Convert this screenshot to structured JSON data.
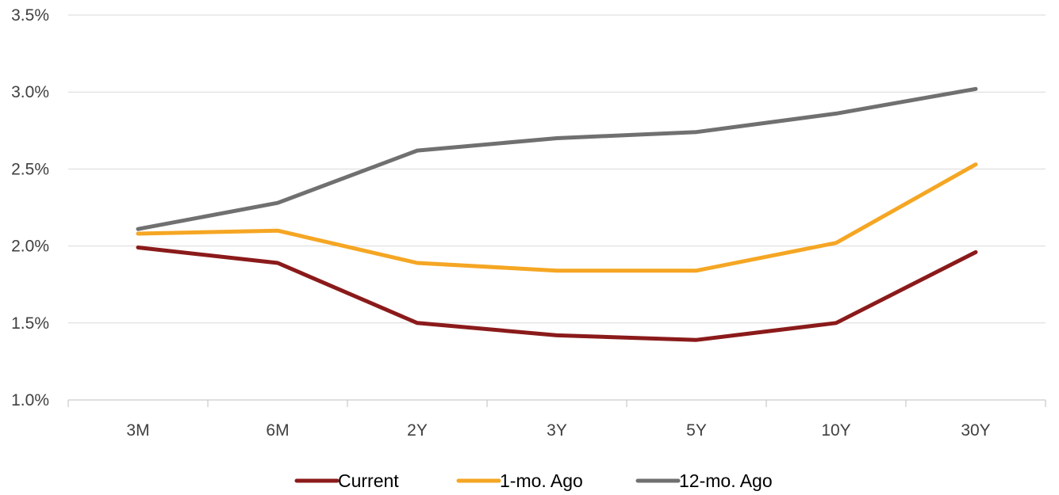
{
  "chart_data": {
    "type": "line",
    "title": "",
    "xlabel": "",
    "ylabel": "",
    "categories": [
      "3M",
      "6M",
      "2Y",
      "3Y",
      "5Y",
      "10Y",
      "30Y"
    ],
    "ylim": [
      1.0,
      3.5
    ],
    "yticks": [
      "1.0%",
      "1.5%",
      "2.0%",
      "2.5%",
      "3.0%",
      "3.5%"
    ],
    "grid": true,
    "legend_position": "bottom",
    "series": [
      {
        "name": "Current",
        "color": "#8b1a1a",
        "values": [
          1.99,
          1.89,
          1.5,
          1.42,
          1.39,
          1.5,
          1.96
        ]
      },
      {
        "name": "1-mo. Ago",
        "color": "#f5a623",
        "values": [
          2.08,
          2.1,
          1.89,
          1.84,
          1.84,
          2.02,
          2.53
        ]
      },
      {
        "name": "12-mo. Ago",
        "color": "#707070",
        "values": [
          2.11,
          2.28,
          2.62,
          2.7,
          2.74,
          2.86,
          3.02
        ]
      }
    ]
  }
}
